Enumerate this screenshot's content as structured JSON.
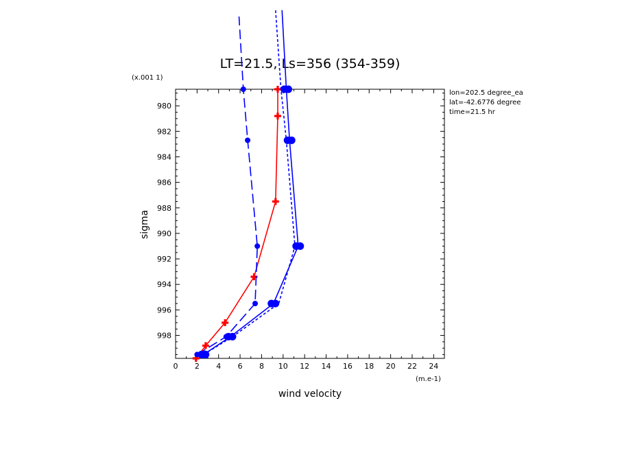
{
  "chart_data": {
    "type": "line",
    "title": "LT=21.5, Ls=356 (354-359)",
    "xlabel": "wind velocity",
    "ylabel": "sigma",
    "x_scale_label": "(m.e-1)",
    "y_scale_label": "(x.001 1)",
    "xlim": [
      0,
      25
    ],
    "ylim": [
      999.8,
      978.7
    ],
    "x_ticks": [
      "0",
      "2",
      "4",
      "6",
      "8",
      "10",
      "12",
      "14",
      "16",
      "18",
      "20",
      "22",
      "24"
    ],
    "y_ticks": [
      "980",
      "982",
      "984",
      "986",
      "988",
      "990",
      "992",
      "994",
      "996",
      "998"
    ],
    "annotations": [
      "lon=202.5 degree_ea",
      "lat=-42.6776 degree",
      "time=21.5 hr"
    ],
    "series": [
      {
        "color": "#ff0000",
        "dash": "solid",
        "marker": "plus",
        "points": [
          [
            1.9,
            999.8
          ],
          [
            2.8,
            998.8
          ],
          [
            4.6,
            997.0
          ],
          [
            7.3,
            993.4
          ],
          [
            9.3,
            987.5
          ],
          [
            9.5,
            980.8
          ],
          [
            9.5,
            978.7
          ]
        ]
      },
      {
        "color": "#0000ff",
        "dash": "long",
        "marker": "dot-small",
        "points": [
          [
            2.0,
            999.5
          ],
          [
            4.7,
            998.1
          ],
          [
            7.4,
            995.5
          ],
          [
            7.6,
            991.0
          ],
          [
            6.7,
            982.7
          ],
          [
            6.3,
            978.7
          ],
          [
            5.9,
            973.0
          ]
        ]
      },
      {
        "color": "#0000ff",
        "dash": "solid",
        "marker": "dot-large",
        "points": [
          [
            2.6,
            999.5
          ],
          [
            5.1,
            998.1
          ],
          [
            9.1,
            995.5
          ],
          [
            11.4,
            991.0
          ],
          [
            10.6,
            982.7
          ],
          [
            10.3,
            978.7
          ],
          [
            9.9,
            972.5
          ]
        ]
      },
      {
        "color": "#0000ff",
        "dash": "short",
        "marker": "none",
        "points": [
          [
            2.6,
            999.5
          ],
          [
            5.3,
            998.1
          ],
          [
            9.6,
            995.5
          ],
          [
            11.1,
            991.0
          ],
          [
            10.3,
            982.7
          ],
          [
            9.8,
            978.7
          ],
          [
            9.3,
            972.5
          ]
        ]
      }
    ]
  }
}
